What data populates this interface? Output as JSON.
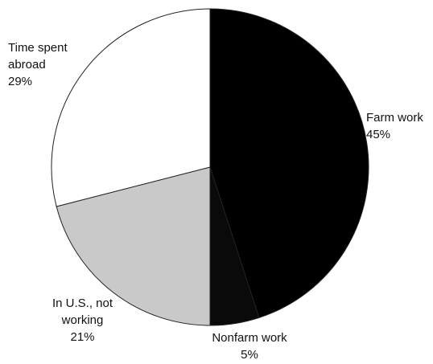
{
  "chart_data": {
    "type": "pie",
    "categories": [
      "Farm work",
      "Nonfarm work",
      "In U.S., not working",
      "Time spent abroad"
    ],
    "values": [
      45,
      5,
      21,
      29
    ],
    "value_labels": [
      "45%",
      "5%",
      "21%",
      "29%"
    ],
    "colors": [
      "#000000",
      "#0a0a0a",
      "#c9c9c9",
      "#ffffff"
    ]
  }
}
